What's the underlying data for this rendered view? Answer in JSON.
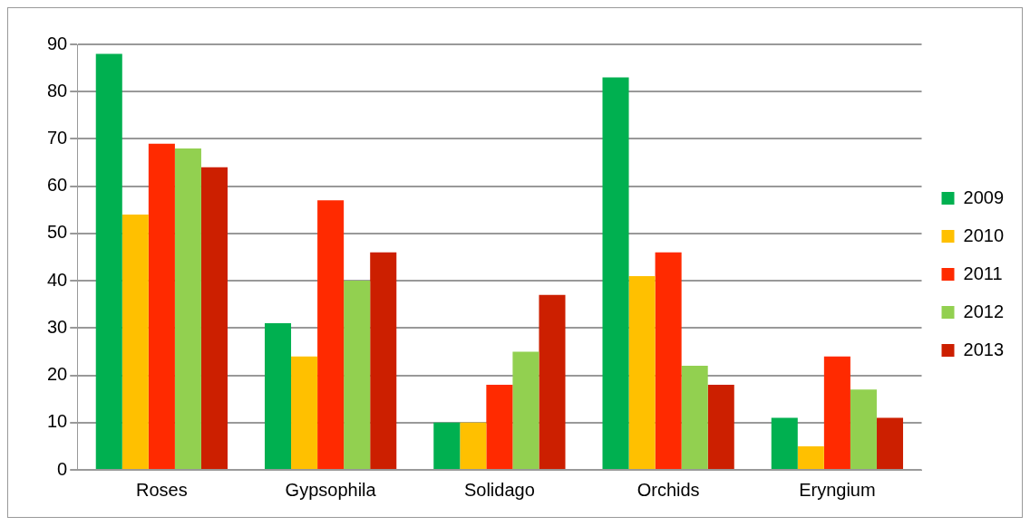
{
  "chart_data": {
    "type": "bar",
    "categories": [
      "Roses",
      "Gypsophila",
      "Solidago",
      "Orchids",
      "Eryngium"
    ],
    "series": [
      {
        "name": "2009",
        "color": "#00b050",
        "values": [
          88,
          31,
          10,
          83,
          11
        ]
      },
      {
        "name": "2010",
        "color": "#ffc000",
        "values": [
          54,
          24,
          10,
          41,
          5
        ]
      },
      {
        "name": "2011",
        "color": "#ff2a00",
        "values": [
          69,
          57,
          18,
          46,
          24
        ]
      },
      {
        "name": "2012",
        "color": "#92d050",
        "values": [
          68,
          40,
          25,
          22,
          17
        ]
      },
      {
        "name": "2013",
        "color": "#cc1f00",
        "values": [
          64,
          46,
          37,
          18,
          11
        ]
      }
    ],
    "ylim": [
      0,
      90
    ],
    "yticks": [
      0,
      10,
      20,
      30,
      40,
      50,
      60,
      70,
      80,
      90
    ],
    "grid": "y",
    "legend": "right"
  }
}
